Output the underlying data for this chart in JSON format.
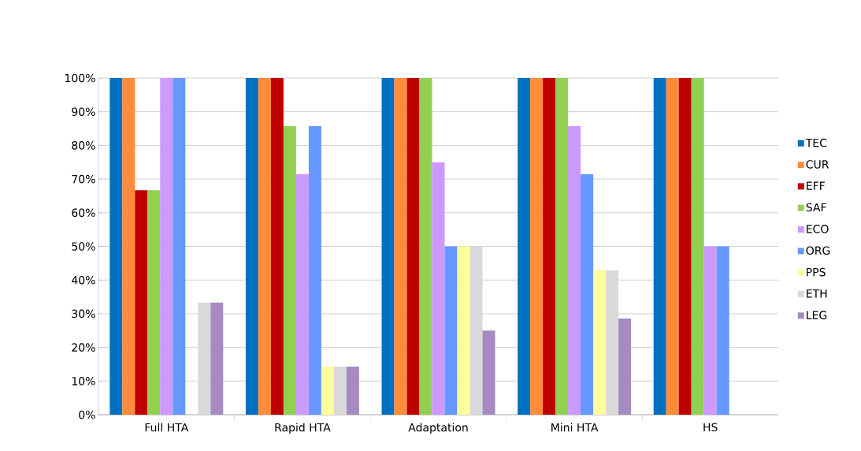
{
  "chart_data": {
    "type": "bar",
    "categories": [
      "Full HTA",
      "Rapid HTA",
      "Adaptation",
      "Mini HTA",
      "HS"
    ],
    "series": [
      {
        "name": "TEC",
        "color": "#0070c0",
        "values": [
          100,
          100,
          100,
          100,
          100
        ]
      },
      {
        "name": "CUR",
        "color": "#ff8c3a",
        "values": [
          100,
          100,
          100,
          100,
          100
        ]
      },
      {
        "name": "EFF",
        "color": "#c00000",
        "values": [
          66.7,
          100,
          100,
          100,
          100
        ]
      },
      {
        "name": "SAF",
        "color": "#92d050",
        "values": [
          66.7,
          85.7,
          100,
          100,
          100
        ]
      },
      {
        "name": "ECO",
        "color": "#cc99ff",
        "values": [
          100,
          71.4,
          75,
          85.7,
          50
        ]
      },
      {
        "name": "ORG",
        "color": "#6699ff",
        "values": [
          100,
          85.7,
          50,
          71.4,
          50
        ]
      },
      {
        "name": "PPS",
        "color": "#ffff99",
        "values": [
          0,
          14.3,
          50,
          42.9,
          0
        ]
      },
      {
        "name": "ETH",
        "color": "#d9d9d9",
        "values": [
          33.3,
          14.3,
          50,
          42.9,
          0
        ]
      },
      {
        "name": "LEG",
        "color": "#a58bbf",
        "values": [
          33.3,
          14.3,
          25,
          28.6,
          0
        ]
      }
    ],
    "ylim": [
      0,
      100
    ],
    "yticks": [
      {
        "value": 0,
        "label": "0%"
      },
      {
        "value": 10,
        "label": "10%"
      },
      {
        "value": 20,
        "label": "20%"
      },
      {
        "value": 30,
        "label": "30%"
      },
      {
        "value": 40,
        "label": "40%"
      },
      {
        "value": 50,
        "label": "50%"
      },
      {
        "value": 60,
        "label": "60%"
      },
      {
        "value": 70,
        "label": "70%"
      },
      {
        "value": 80,
        "label": "80%"
      },
      {
        "value": 90,
        "label": "90%"
      },
      {
        "value": 100,
        "label": "100%"
      }
    ],
    "grid": "y",
    "legend": "right"
  }
}
